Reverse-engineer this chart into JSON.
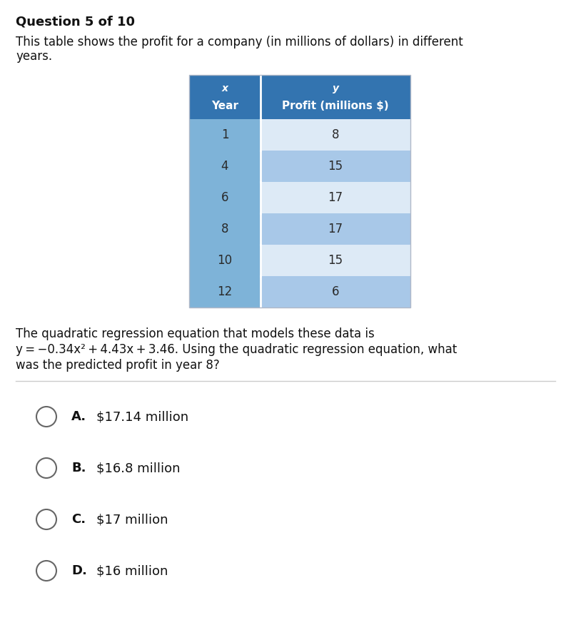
{
  "title": "Question 5 of 10",
  "intro_text_line1": "This table shows the profit for a company (in millions of dollars) in different",
  "intro_text_line2": "years.",
  "col1_header_top": "x",
  "col2_header_top": "y",
  "col1_header_bot": "Year",
  "col2_header_bot": "Profit (millions $)",
  "table_data": [
    [
      "1",
      "8"
    ],
    [
      "4",
      "15"
    ],
    [
      "6",
      "17"
    ],
    [
      "8",
      "17"
    ],
    [
      "10",
      "15"
    ],
    [
      "12",
      "6"
    ]
  ],
  "header_bg": "#3374B0",
  "header_text_color": "#ffffff",
  "row_col1_dark": "#7EB3D8",
  "row_col2_light": "#DDEAF6",
  "row_col2_medium": "#A8C8E8",
  "body_text_color": "#2a2a2a",
  "question_line1": "The quadratic regression equation that models these data is",
  "question_line2": "y = −0.34x² + 4.43x + 3.46. Using the quadratic regression equation, what",
  "question_line3": "was the predicted profit in year 8?",
  "divider_color": "#cccccc",
  "choices": [
    {
      "label": "A.",
      "text": "$17.14 million"
    },
    {
      "label": "B.",
      "text": "$16.8 million"
    },
    {
      "label": "C.",
      "text": "$17 million"
    },
    {
      "label": "D.",
      "text": "$16 million"
    }
  ],
  "bg_color": "#ffffff",
  "font_size_title": 13,
  "font_size_body": 12,
  "font_size_table_header": 11,
  "font_size_table_body": 12,
  "font_size_choices": 13
}
